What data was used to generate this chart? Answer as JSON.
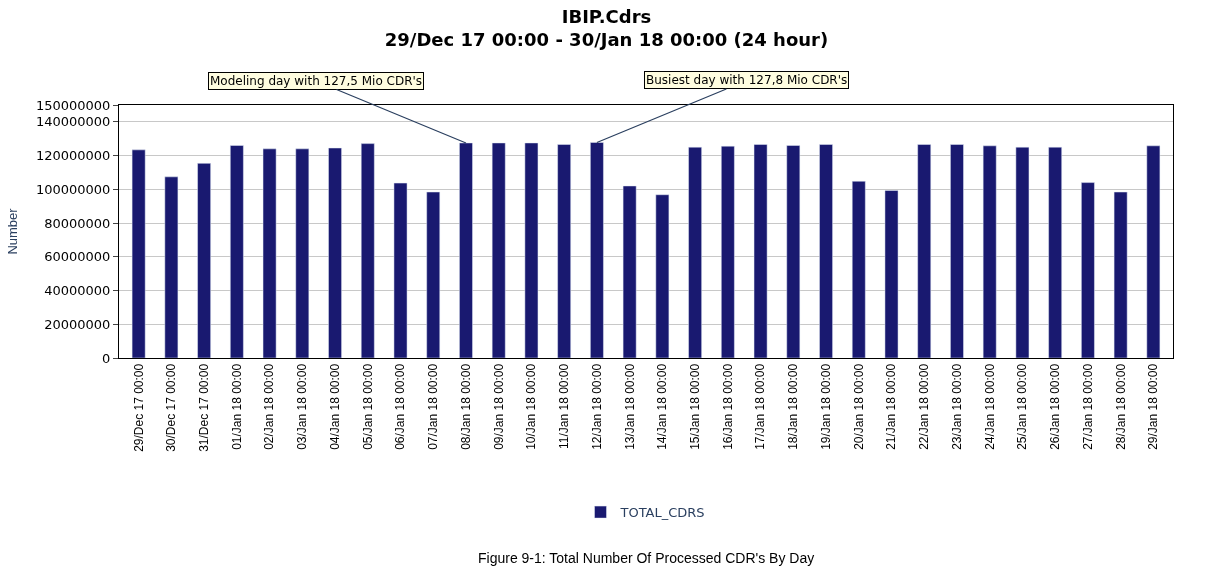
{
  "chart_data": {
    "type": "bar",
    "title": "IBIP.Cdrs",
    "subtitle": "29/Dec 17 00:00 - 30/Jan 18 00:00 (24 hour)",
    "ylabel": "Number",
    "categories": [
      "29/Dec 17 00:00",
      "30/Dec 17 00:00",
      "31/Dec 17 00:00",
      "01/Jan 18 00:00",
      "02/Jan 18 00:00",
      "03/Jan 18 00:00",
      "04/Jan 18 00:00",
      "05/Jan 18 00:00",
      "06/Jan 18 00:00",
      "07/Jan 18 00:00",
      "08/Jan 18 00:00",
      "09/Jan 18 00:00",
      "10/Jan 18 00:00",
      "11/Jan 18 00:00",
      "12/Jan 18 00:00",
      "13/Jan 18 00:00",
      "14/Jan 18 00:00",
      "15/Jan 18 00:00",
      "16/Jan 18 00:00",
      "17/Jan 18 00:00",
      "18/Jan 18 00:00",
      "19/Jan 18 00:00",
      "20/Jan 18 00:00",
      "21/Jan 18 00:00",
      "22/Jan 18 00:00",
      "23/Jan 18 00:00",
      "24/Jan 18 00:00",
      "25/Jan 18 00:00",
      "26/Jan 18 00:00",
      "27/Jan 18 00:00",
      "28/Jan 18 00:00",
      "29/Jan 18 00:00"
    ],
    "series": [
      {
        "name": "TOTAL_CDRS",
        "color": "#191970",
        "values": [
          123400000,
          107400000,
          115400000,
          126000000,
          124000000,
          124000000,
          124500000,
          127100000,
          103700000,
          98400000,
          127500000,
          127500000,
          127500000,
          126600000,
          127800000,
          102000000,
          96800000,
          125000000,
          125600000,
          126600000,
          126000000,
          126600000,
          104800000,
          99300000,
          126600000,
          126600000,
          125800000,
          125000000,
          125000000,
          104000000,
          98400000,
          125800000
        ]
      }
    ],
    "ylim": [
      0,
      150000000
    ],
    "yticks": [
      0,
      20000000,
      40000000,
      60000000,
      80000000,
      100000000,
      120000000,
      140000000,
      150000000
    ],
    "grid": "y",
    "legend": "bottom",
    "annotations": [
      {
        "text": "Modeling day with 127,5 Mio CDR's",
        "x": "08/Jan 18 00:00",
        "y": 127500000
      },
      {
        "text": "Busiest day with 127,8 Mio CDR's",
        "x": "12/Jan 18 00:00",
        "y": 127800000
      },
      "Figure 9-1: Total Number Of Processed CDR's By Day"
    ]
  }
}
